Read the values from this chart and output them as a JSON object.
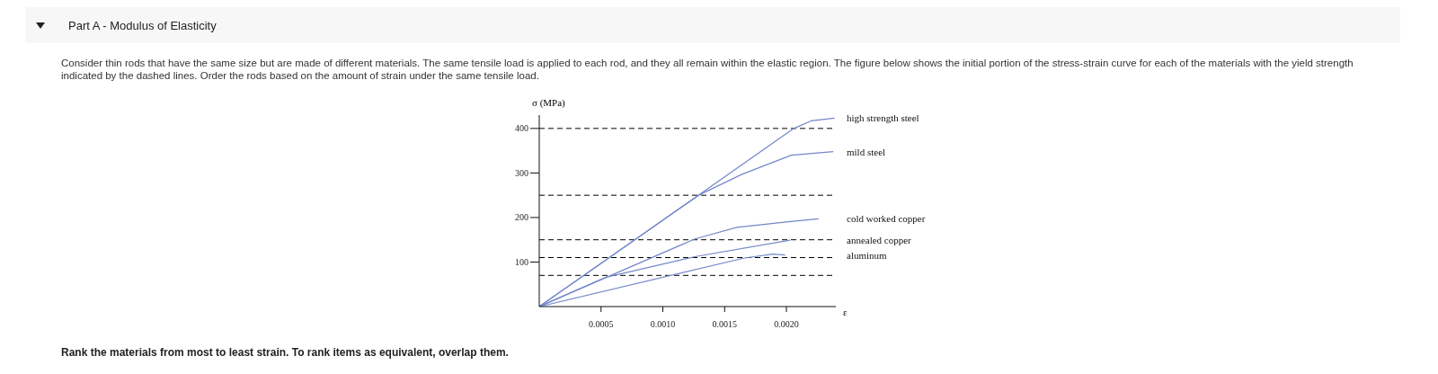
{
  "chart_data": {
    "type": "line",
    "title": "Part A - Modulus of Elasticity",
    "subtitle": "Consider thin rods that have the same size but are made of different materials. The same tensile load is applied to each rod, and they all remain within the elastic region. The figure below shows the initial portion of the stress-strain curve for each of the materials with the yield strength indicated by the dashed lines. Order the rods based on the amount of strain under the same tensile load.",
    "xlabel": "ε",
    "ylabel": "σ (MPa)",
    "annotations": [
      "Rank the materials from most to least strain. To rank items as equivalent, overlap them."
    ],
    "xlim": [
      0,
      0.0024
    ],
    "xticks": [
      {
        "value": 0.0005,
        "label": "0.0005"
      },
      {
        "value": 0.001,
        "label": "0.0010"
      },
      {
        "value": 0.0015,
        "label": "0.0015"
      },
      {
        "value": 0.002,
        "label": "0.0020"
      }
    ],
    "ylim": [
      0,
      430
    ],
    "yticks": [
      100,
      200,
      300,
      400
    ],
    "grid": false,
    "marker": "none",
    "line_style": "solid",
    "ref_lines": [
      {
        "axis": "y",
        "value": 400,
        "line_style": "dashed",
        "color": "#000000"
      },
      {
        "axis": "y",
        "value": 250,
        "line_style": "dashed",
        "color": "#000000"
      },
      {
        "axis": "y",
        "value": 150,
        "line_style": "dashed",
        "color": "#000000"
      },
      {
        "axis": "y",
        "value": 110,
        "line_style": "dashed",
        "color": "#000000"
      },
      {
        "axis": "y",
        "value": 70,
        "line_style": "dashed",
        "color": "#000000"
      }
    ],
    "series": [
      {
        "name": "high strength steel",
        "color": "#7487c9",
        "x": [
          0,
          0.00206,
          0.0022,
          0.00239
        ],
        "values": [
          0,
          400,
          417,
          423
        ]
      },
      {
        "name": "mild steel",
        "color": "#7487c9",
        "x": [
          0,
          0.00129,
          0.00164,
          0.00204,
          0.00238
        ],
        "values": [
          0,
          250,
          297,
          340,
          348
        ]
      },
      {
        "name": "cold worked copper",
        "color": "#7487c9",
        "x": [
          0,
          0.00126,
          0.0016,
          0.002,
          0.00226
        ],
        "values": [
          0,
          152,
          178,
          190,
          197
        ]
      },
      {
        "name": "annealed copper",
        "color": "#7487c9",
        "x": [
          0,
          0.00054,
          0.00126,
          0.00203
        ],
        "values": [
          0,
          66,
          112,
          149
        ]
      },
      {
        "name": "aluminum",
        "color": "#7487c9",
        "x": [
          0,
          0.00166,
          0.00189,
          0.00199
        ],
        "values": [
          0,
          109,
          118,
          116
        ]
      }
    ]
  }
}
